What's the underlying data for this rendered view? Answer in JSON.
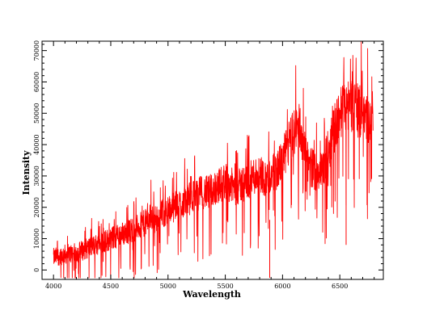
{
  "chart_data": {
    "type": "line",
    "title": "",
    "xlabel": "Wavelength",
    "ylabel": "Intensity",
    "xlim": [
      3900,
      6880
    ],
    "ylim": [
      -3000,
      73000
    ],
    "x_ticks": [
      4000,
      4500,
      5000,
      5500,
      6000,
      6500
    ],
    "y_ticks": [
      0,
      10000,
      20000,
      30000,
      40000,
      50000,
      60000,
      70000
    ],
    "x_tick_labels": [
      "4000",
      "4500",
      "5000",
      "5500",
      "6000",
      "6500"
    ],
    "y_tick_labels": [
      "0",
      "10000",
      "20000",
      "30000",
      "40000",
      "50000",
      "60000",
      "70000"
    ],
    "grid": false,
    "legend": "none",
    "series": [
      {
        "color": "#ff0000",
        "x": [
          4000,
          4100,
          4200,
          4300,
          4400,
          4500,
          4600,
          4700,
          4800,
          4850,
          4900,
          4950,
          5000,
          5050,
          5100,
          5150,
          5200,
          5250,
          5300,
          5350,
          5400,
          5450,
          5500,
          5550,
          5600,
          5650,
          5700,
          5750,
          5800,
          5850,
          5900,
          5950,
          6000,
          6050,
          6100,
          6150,
          6200,
          6250,
          6300,
          6350,
          6400,
          6450,
          6500,
          6550,
          6600,
          6650,
          6700,
          6750,
          6790
        ],
        "y": [
          4000,
          5000,
          5500,
          7000,
          8500,
          10000,
          11500,
          13000,
          15000,
          17000,
          16000,
          18000,
          19000,
          20000,
          21000,
          22000,
          23000,
          24000,
          25000,
          24500,
          26000,
          27000,
          28500,
          27000,
          26000,
          27500,
          28000,
          30000,
          31000,
          29000,
          30000,
          32000,
          35000,
          40000,
          44000,
          46000,
          36000,
          33000,
          31000,
          32000,
          38000,
          45000,
          50000,
          52000,
          53000,
          51000,
          50000,
          48000,
          49000
        ]
      }
    ]
  }
}
